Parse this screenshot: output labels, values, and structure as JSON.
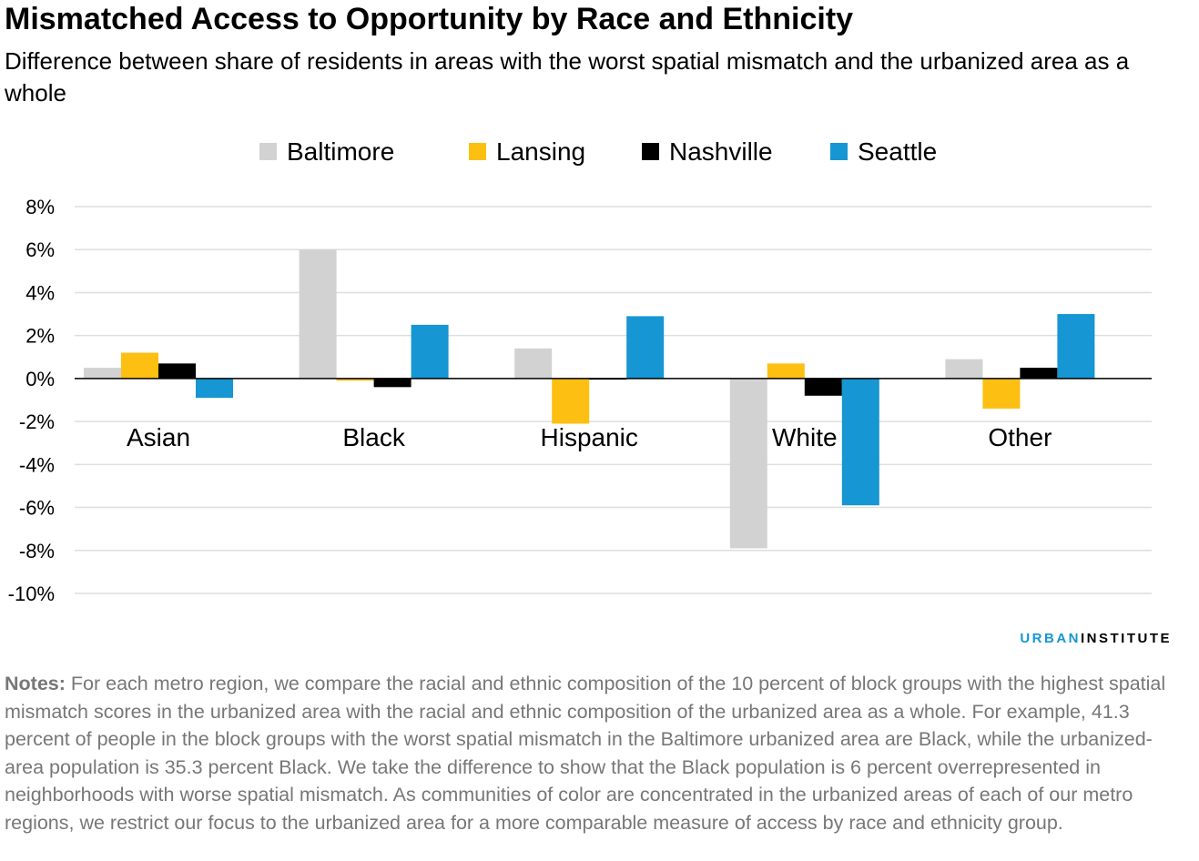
{
  "title": "Mismatched Access to Opportunity by Race and Ethnicity",
  "subtitle": "Difference between share of residents in areas with the worst spatial mismatch and the urbanized area as a whole",
  "brand": {
    "part1": "URBAN",
    "part2": "INSTITUTE"
  },
  "notes": {
    "label": "Notes:",
    "text": "For each metro region, we compare the racial and ethnic composition of the 10 percent of block groups with the highest spatial mismatch scores in the urbanized area with the racial and ethnic composition of the urbanized area as a whole. For example, 41.3 percent of people in the block groups with the worst spatial mismatch in the Baltimore urbanized area are Black, while the urbanized-area population is 35.3 percent Black. We take the difference to show that the Black population is 6 percent overrepresented in neighborhoods with worse spatial mismatch. As communities of color are concentrated in the urbanized areas of each of our metro regions, we restrict our focus to the urbanized area for a more comparable measure of access by race and ethnicity group."
  },
  "chart_data": {
    "type": "bar",
    "categories": [
      "Asian",
      "Black",
      "Hispanic",
      "White",
      "Other"
    ],
    "series": [
      {
        "name": "Baltimore",
        "color": "#d2d2d2",
        "values": [
          0.5,
          6.0,
          1.4,
          -7.9,
          0.9
        ]
      },
      {
        "name": "Lansing",
        "color": "#fdbf11",
        "values": [
          1.2,
          -0.1,
          -2.1,
          0.7,
          -1.4
        ]
      },
      {
        "name": "Nashville",
        "color": "#000000",
        "values": [
          0.7,
          -0.4,
          -0.05,
          -0.8,
          0.5
        ]
      },
      {
        "name": "Seattle",
        "color": "#1696d2",
        "values": [
          -0.9,
          2.5,
          2.9,
          -5.9,
          3.0
        ]
      }
    ],
    "ylim": [
      -10,
      8
    ],
    "yticks": [
      8,
      6,
      4,
      2,
      0,
      -2,
      -4,
      -6,
      -8,
      -10
    ],
    "ytick_labels": [
      "8%",
      "6%",
      "4%",
      "2%",
      "0%",
      "-2%",
      "-4%",
      "-6%",
      "-8%",
      "-10%"
    ],
    "grid": true,
    "legend_position": "top"
  }
}
